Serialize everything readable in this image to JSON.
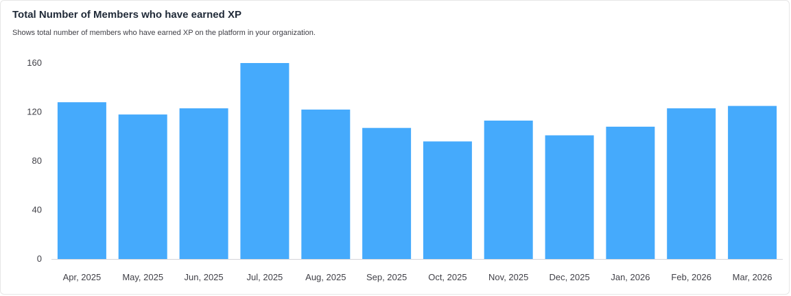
{
  "header": {
    "title": "Total Number of Members who have earned XP",
    "subtitle": "Shows total number of members who have earned XP on the platform in your organization."
  },
  "colors": {
    "bar": "#45aafc",
    "axis": "#d4d4d8",
    "text": "#3f3f46"
  },
  "chart_data": {
    "type": "bar",
    "title": "Total Number of Members who have earned XP",
    "subtitle": "Shows total number of members who have earned XP on the platform in your organization.",
    "xlabel": "",
    "ylabel": "",
    "categories": [
      "Apr, 2025",
      "May, 2025",
      "Jun, 2025",
      "Jul, 2025",
      "Aug, 2025",
      "Sep, 2025",
      "Oct, 2025",
      "Nov, 2025",
      "Dec, 2025",
      "Jan, 2026",
      "Feb, 2026",
      "Mar, 2026"
    ],
    "values": [
      128,
      118,
      123,
      160,
      122,
      107,
      96,
      113,
      101,
      108,
      123,
      125
    ],
    "ylim": [
      0,
      160
    ],
    "yticks": [
      0,
      40,
      80,
      120,
      160
    ],
    "grid": false,
    "legend": "none"
  }
}
